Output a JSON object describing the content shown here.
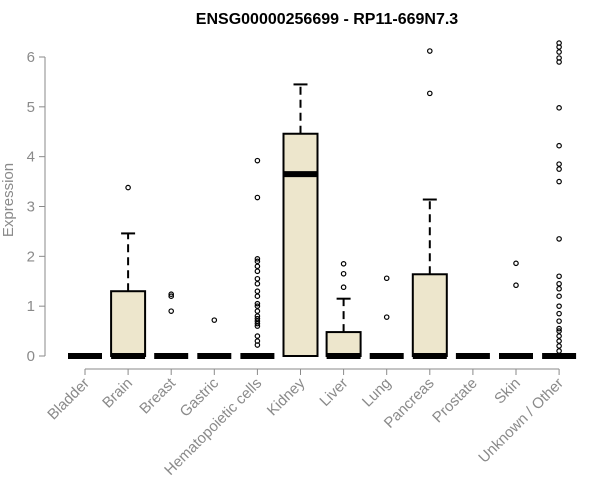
{
  "chart_data": {
    "type": "boxplot",
    "title": "ENSG00000256699 - RP11-669N7.3",
    "xlabel": "",
    "ylabel": "Expression",
    "ylim": [
      0,
      6.2
    ],
    "yticks": [
      0,
      1,
      2,
      3,
      4,
      5,
      6
    ],
    "grid": false,
    "legend": "none",
    "box_fill": "#ede6cc",
    "box_stroke": "#000000",
    "axis_color": "#8a8a8a",
    "categories": [
      "Bladder",
      "Brain",
      "Breast",
      "Gastric",
      "Hematopoietic cells",
      "Kidney",
      "Liver",
      "Lung",
      "Pancreas",
      "Prostate",
      "Skin",
      "Unknown / Other"
    ],
    "boxes": [
      {
        "q1": 0,
        "median": 0,
        "q3": 0,
        "whisker_low": 0,
        "whisker_high": 0,
        "outliers": []
      },
      {
        "q1": 0,
        "median": 0,
        "q3": 1.3,
        "whisker_low": 0,
        "whisker_high": 2.46,
        "outliers": [
          3.38
        ]
      },
      {
        "q1": 0,
        "median": 0,
        "q3": 0,
        "whisker_low": 0,
        "whisker_high": 0,
        "outliers": [
          0.9,
          1.2,
          1.24
        ]
      },
      {
        "q1": 0,
        "median": 0,
        "q3": 0,
        "whisker_low": 0,
        "whisker_high": 0,
        "outliers": [
          0.72
        ]
      },
      {
        "q1": 0,
        "median": 0,
        "q3": 0,
        "whisker_low": 0,
        "whisker_high": 0,
        "outliers": [
          0.22,
          0.3,
          0.4,
          0.6,
          0.65,
          0.7,
          0.75,
          0.8,
          0.9,
          1.0,
          1.05,
          1.2,
          1.3,
          1.45,
          1.55,
          1.7,
          1.8,
          1.9,
          1.95,
          3.18,
          3.92
        ]
      },
      {
        "q1": 0,
        "median": 3.65,
        "q3": 4.46,
        "whisker_low": 0,
        "whisker_high": 5.45,
        "outliers": []
      },
      {
        "q1": 0,
        "median": 0,
        "q3": 0.48,
        "whisker_low": 0,
        "whisker_high": 1.15,
        "outliers": [
          1.38,
          1.65,
          1.85
        ]
      },
      {
        "q1": 0,
        "median": 0,
        "q3": 0,
        "whisker_low": 0,
        "whisker_high": 0,
        "outliers": [
          0.78,
          1.56
        ]
      },
      {
        "q1": 0,
        "median": 0,
        "q3": 1.64,
        "whisker_low": 0,
        "whisker_high": 3.14,
        "outliers": [
          5.27,
          6.12
        ]
      },
      {
        "q1": 0,
        "median": 0,
        "q3": 0,
        "whisker_low": 0,
        "whisker_high": 0,
        "outliers": []
      },
      {
        "q1": 0,
        "median": 0,
        "q3": 0,
        "whisker_low": 0,
        "whisker_high": 0,
        "outliers": [
          1.42,
          1.86
        ]
      },
      {
        "q1": 0,
        "median": 0,
        "q3": 0,
        "whisker_low": 0,
        "whisker_high": 0,
        "outliers": [
          0.1,
          0.2,
          0.3,
          0.4,
          0.5,
          0.55,
          0.7,
          0.85,
          1.0,
          1.2,
          1.35,
          1.45,
          1.6,
          2.35,
          3.5,
          3.75,
          3.85,
          4.22,
          4.98,
          5.9,
          5.98,
          6.1,
          6.2,
          6.28
        ]
      }
    ]
  }
}
